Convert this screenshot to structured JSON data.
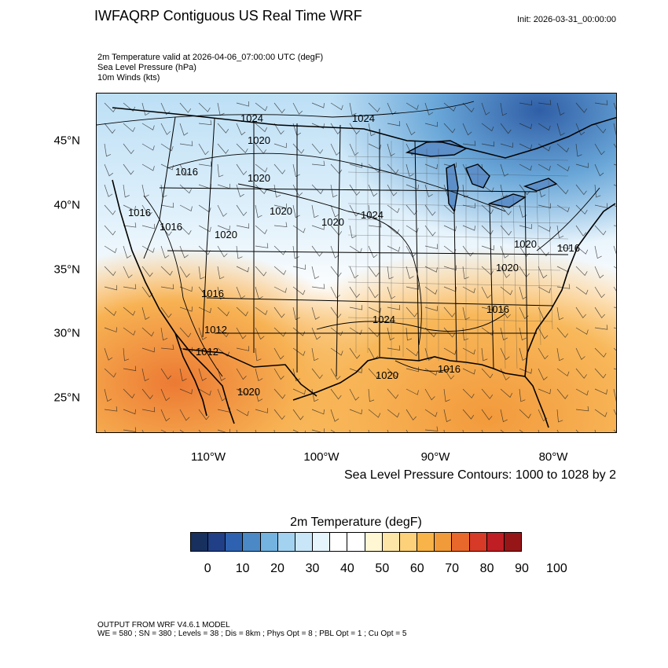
{
  "header": {
    "title": "IWFAQRP Contiguous US Real Time WRF",
    "init": "Init: 2026-03-31_00:00:00"
  },
  "fields": {
    "temp": "2m Temperature valid at 2026-04-06_07:00:00 UTC   (degF)",
    "slp": "Sea Level Pressure   (hPa)",
    "wind": "10m Winds   (kts)"
  },
  "map": {
    "projection": "Lambert conformal, Contiguous US",
    "lat_labels": [
      "45°N",
      "40°N",
      "35°N",
      "30°N",
      "25°N"
    ],
    "lon_labels": [
      "110°W",
      "100°W",
      "90°W",
      "80°W"
    ],
    "lat_values": [
      45,
      40,
      35,
      30,
      25
    ],
    "lon_values": [
      -110,
      -100,
      -90,
      -80
    ],
    "pressure_labels": [
      "1024",
      "1024",
      "1020",
      "1016",
      "1020",
      "1016",
      "1020",
      "1016",
      "1020",
      "1020",
      "1024",
      "1020",
      "1016",
      "1016",
      "1012",
      "1024",
      "1020",
      "1016",
      "1020",
      "1016",
      "1012",
      "1020"
    ],
    "colors": {
      "frame": "#000000",
      "coast": "#000000",
      "contour": "#000000",
      "wind_barb": "#222222"
    }
  },
  "contour_info": "Sea Level Pressure Contours: 1000 to 1028 by 2",
  "colorbar": {
    "title": "2m Temperature  (degF)",
    "ticks": [
      "0",
      "10",
      "20",
      "30",
      "40",
      "50",
      "60",
      "70",
      "80",
      "90",
      "100"
    ],
    "colors": [
      "#17305e",
      "#213f86",
      "#2e62b0",
      "#4a89c6",
      "#74b3e0",
      "#a3d2f1",
      "#c8e6f8",
      "#e6f4fc",
      "#ffffff",
      "#ffffff",
      "#fff6d4",
      "#fde5a8",
      "#fdd07a",
      "#f8b448",
      "#f09a3a",
      "#e8682c",
      "#d73a26",
      "#bf1e24",
      "#961618"
    ]
  },
  "footer": {
    "line1": "OUTPUT FROM WRF V4.6.1 MODEL",
    "line2": "WE = 580 ; SN = 380 ; Levels = 38 ; Dis = 8km ; Phys Opt = 8 ; PBL Opt = 1 ; Cu Opt = 5"
  }
}
